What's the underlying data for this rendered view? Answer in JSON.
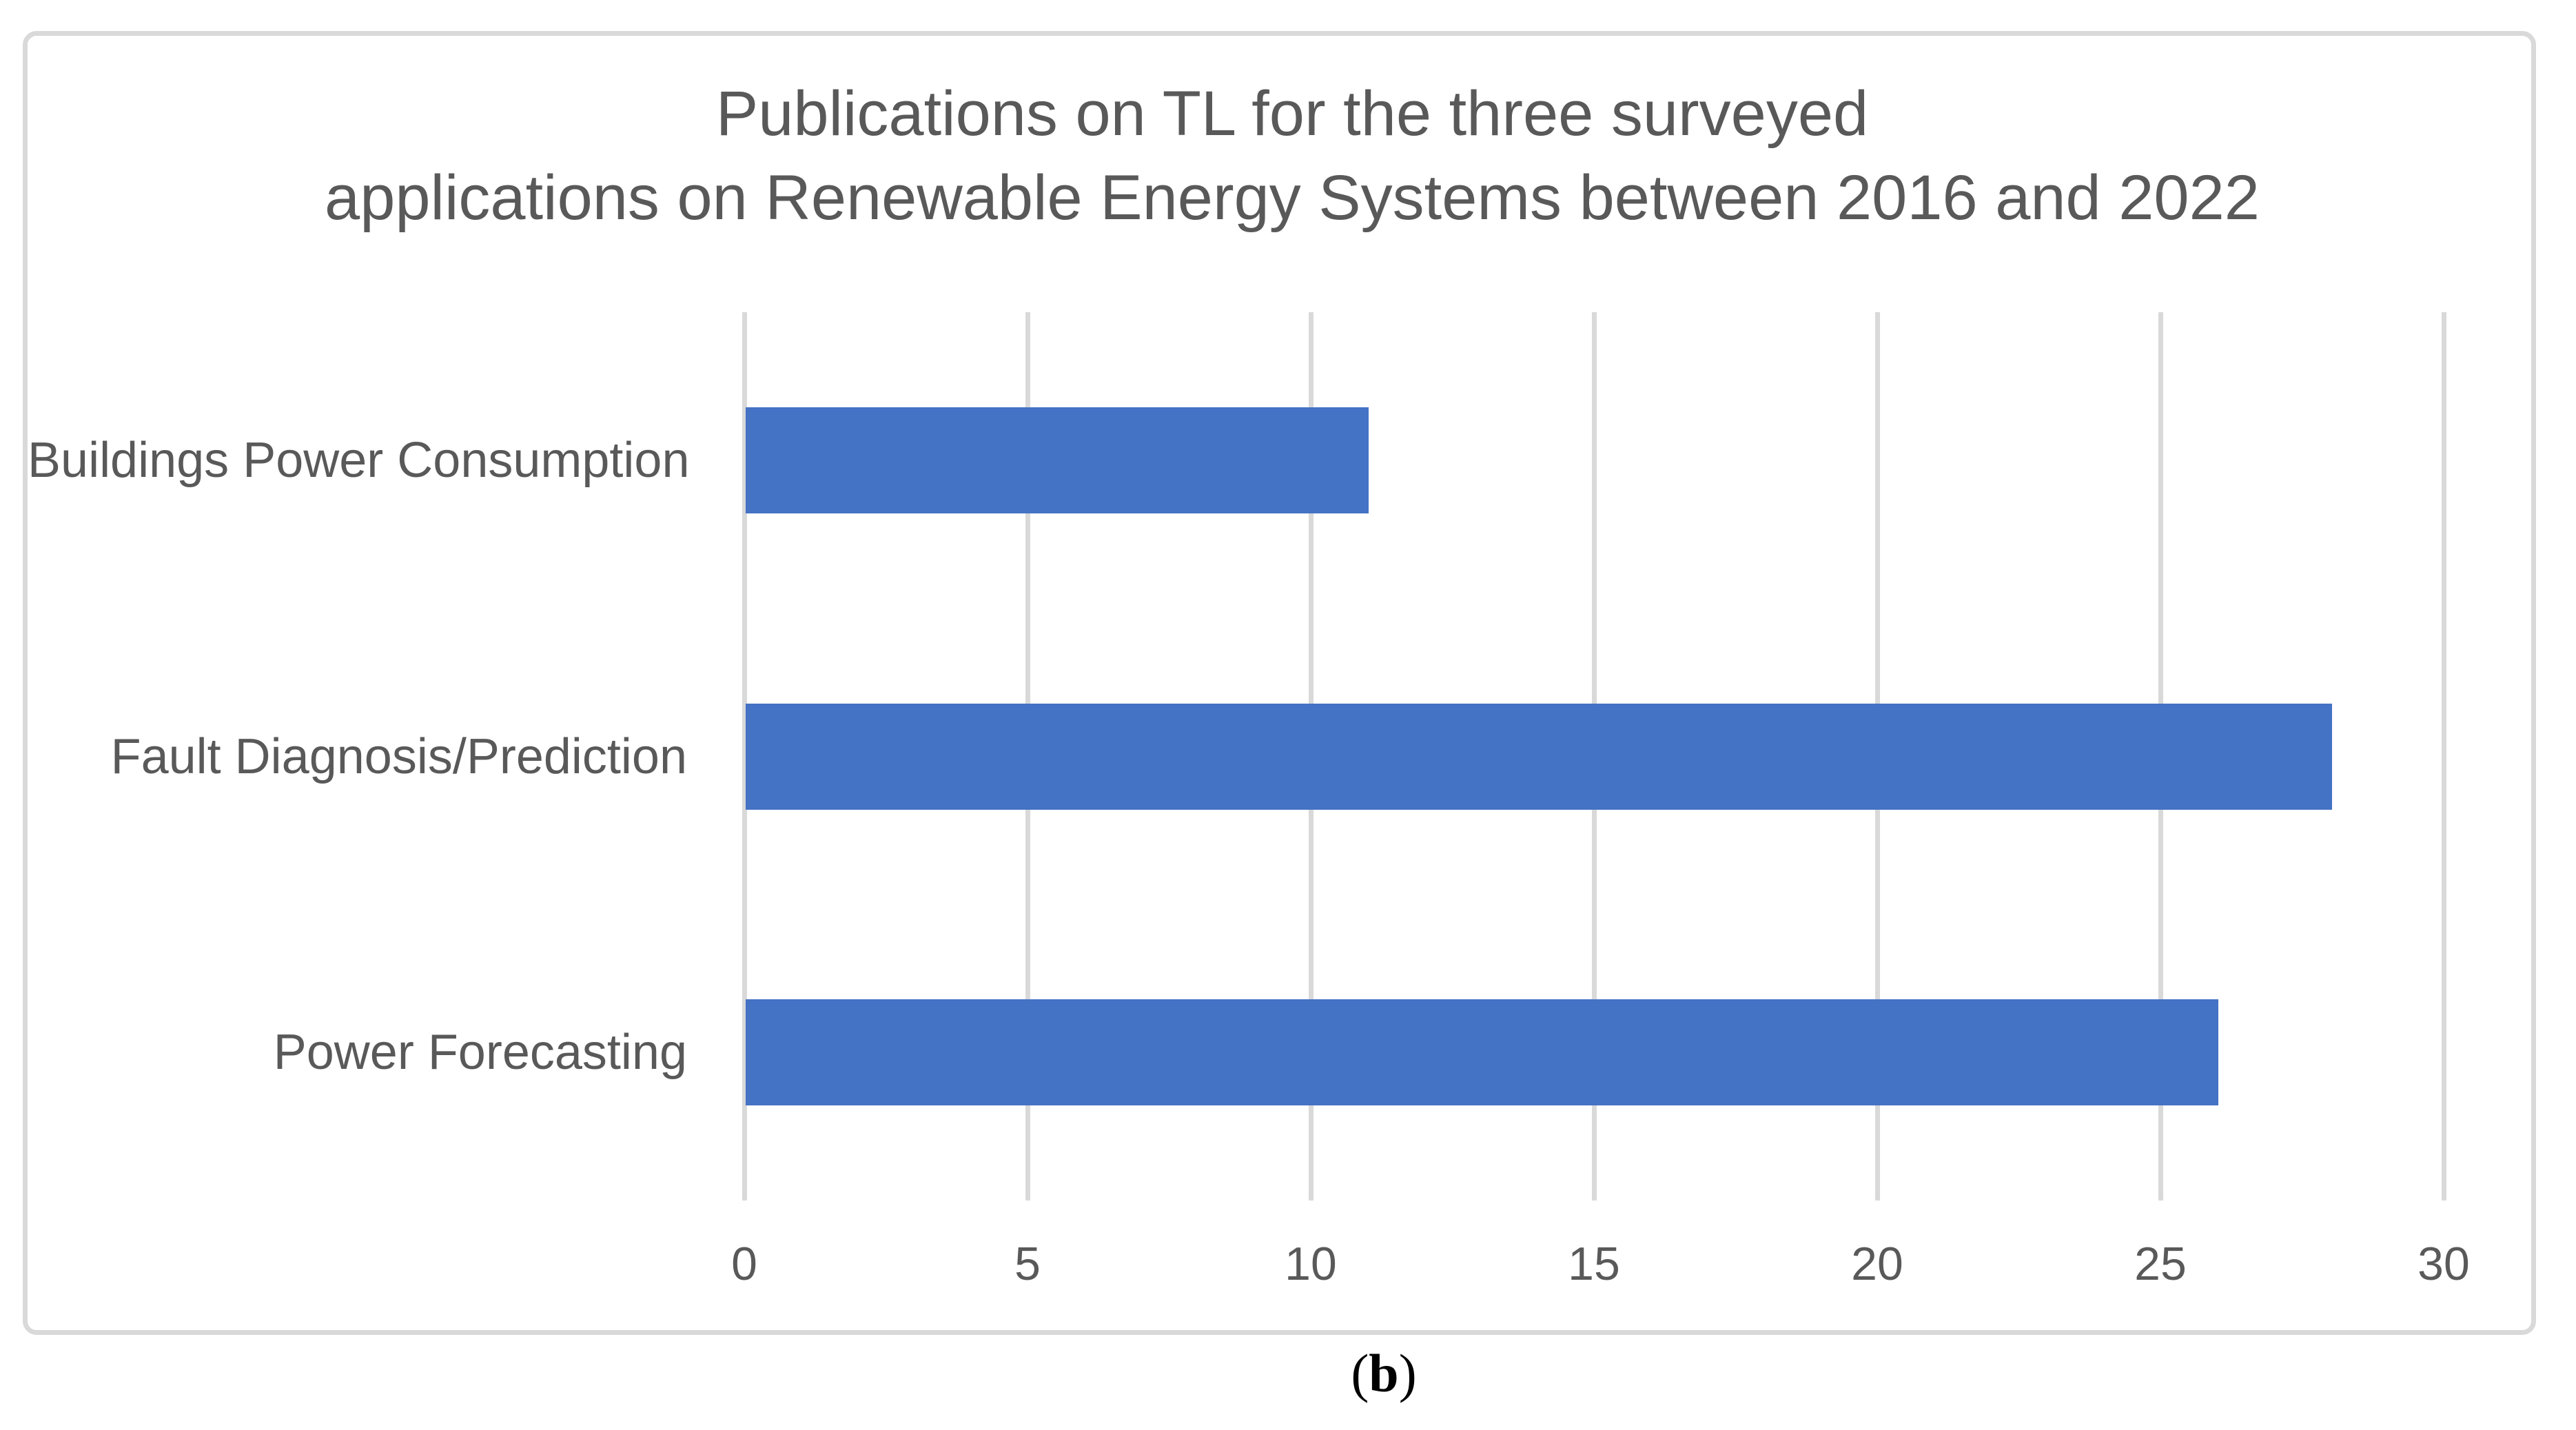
{
  "chart_data": {
    "type": "bar",
    "orientation": "horizontal",
    "title": "Publications on TL for the three surveyed applications on Renewable Energy Systems between 2016 and 2022",
    "title_lines": [
      "Publications on TL for the three surveyed",
      "applications on Renewable Energy Systems between 2016 and 2022"
    ],
    "categories": [
      "Buildings Power Consumption",
      "Fault Diagnosis/Prediction",
      "Power Forecasting"
    ],
    "values": [
      11,
      28,
      26
    ],
    "x_ticks": [
      0,
      5,
      10,
      15,
      20,
      25,
      30
    ],
    "xlim": [
      0,
      30
    ],
    "grid": true,
    "legend": false,
    "bar_color": "#4472C4",
    "gridline_color": "#D9D9D9",
    "axis_text_color": "#595959",
    "title_color": "#595959"
  },
  "caption": {
    "text": "(b)",
    "paren_open": "(",
    "letter": "b",
    "paren_close": ")"
  }
}
